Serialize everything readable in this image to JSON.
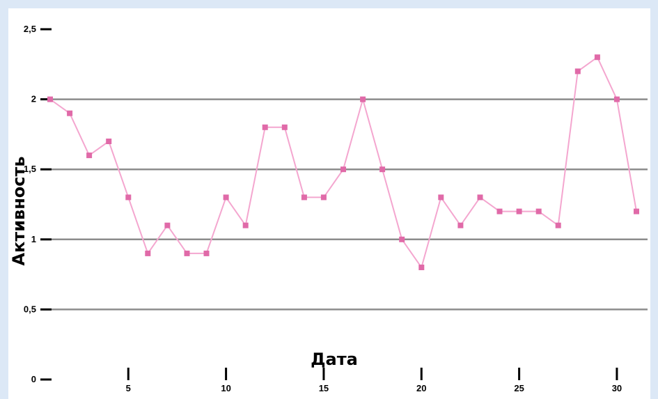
{
  "chart_data": {
    "type": "line",
    "xlabel": "Дата",
    "ylabel": "Активность",
    "xlim": [
      1,
      31
    ],
    "ylim": [
      0,
      2.5
    ],
    "x_ticks": [
      5,
      10,
      15,
      20,
      25,
      30
    ],
    "x_tick_labels": [
      "5",
      "10",
      "15",
      "20",
      "25",
      "30"
    ],
    "y_ticks": [
      0,
      0.5,
      1,
      1.5,
      2,
      2.5
    ],
    "y_tick_labels": [
      "0",
      "0,5",
      "1",
      "1,5",
      "2",
      "2,5"
    ],
    "gridlines_at": [
      0.5,
      1,
      1.5,
      2
    ],
    "legend": "none",
    "series": [
      {
        "color": "#f4a6cf",
        "marker_color": "#e06aa8",
        "x": [
          1,
          2,
          3,
          4,
          5,
          6,
          7,
          8,
          9,
          10,
          11,
          12,
          13,
          14,
          15,
          16,
          17,
          18,
          19,
          20,
          21,
          22,
          23,
          24,
          25,
          26,
          27,
          28,
          29,
          30,
          31
        ],
        "values": [
          2.0,
          1.9,
          1.6,
          1.7,
          1.3,
          0.9,
          1.1,
          0.9,
          0.9,
          1.3,
          1.1,
          1.8,
          1.8,
          1.3,
          1.3,
          1.5,
          2.0,
          1.5,
          1.0,
          0.8,
          1.3,
          1.1,
          1.3,
          1.2,
          1.2,
          1.2,
          1.1,
          2.2,
          2.3,
          2.0,
          1.2
        ]
      }
    ]
  }
}
